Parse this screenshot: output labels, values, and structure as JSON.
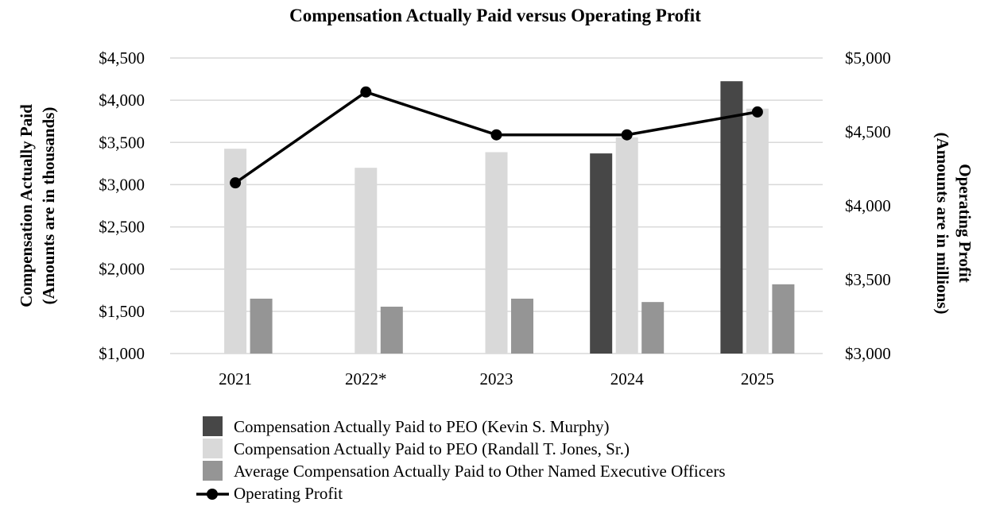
{
  "chart_data": {
    "type": "bar",
    "title": "Compensation Actually Paid versus Operating Profit",
    "categories": [
      "2021",
      "2022*",
      "2023",
      "2024",
      "2025"
    ],
    "y_left": {
      "label_line1": "Compensation Actually Paid",
      "label_line2": "(Amounts are in thousands)",
      "range": [
        1000,
        4500
      ],
      "ticks": [
        1000,
        1500,
        2000,
        2500,
        3000,
        3500,
        4000,
        4500
      ],
      "tick_labels": [
        "$1,000",
        "$1,500",
        "$2,000",
        "$2,500",
        "$3,000",
        "$3,500",
        "$4,000",
        "$4,500"
      ]
    },
    "y_right": {
      "label_line1": "Operating Profit",
      "label_line2": "(Amounts are in millions)",
      "range": [
        3000,
        5000
      ],
      "ticks": [
        3000,
        3500,
        4000,
        4500,
        5000
      ],
      "tick_labels": [
        "$3,000",
        "$3,500",
        "$4,000",
        "$4,500",
        "$5,000"
      ]
    },
    "grid": true,
    "legend_position": "bottom",
    "series": [
      {
        "name": "Compensation Actually Paid to PEO (Kevin S. Murphy)",
        "color": "#474747",
        "type": "bar",
        "values": [
          null,
          null,
          null,
          3370,
          4225
        ]
      },
      {
        "name": "Compensation Actually Paid to PEO (Randall T. Jones, Sr.)",
        "color": "#d9d9d9",
        "type": "bar",
        "values": [
          3425,
          3200,
          3385,
          3560,
          3900
        ]
      },
      {
        "name": "Average Compensation Actually Paid to Other Named Executive Officers",
        "color": "#959595",
        "type": "bar",
        "values": [
          1650,
          1555,
          1650,
          1610,
          1820
        ]
      },
      {
        "name": "Operating Profit",
        "color": "#000000",
        "type": "line",
        "axis": "right",
        "values": [
          4155,
          4770,
          4480,
          4480,
          4635
        ]
      }
    ]
  }
}
